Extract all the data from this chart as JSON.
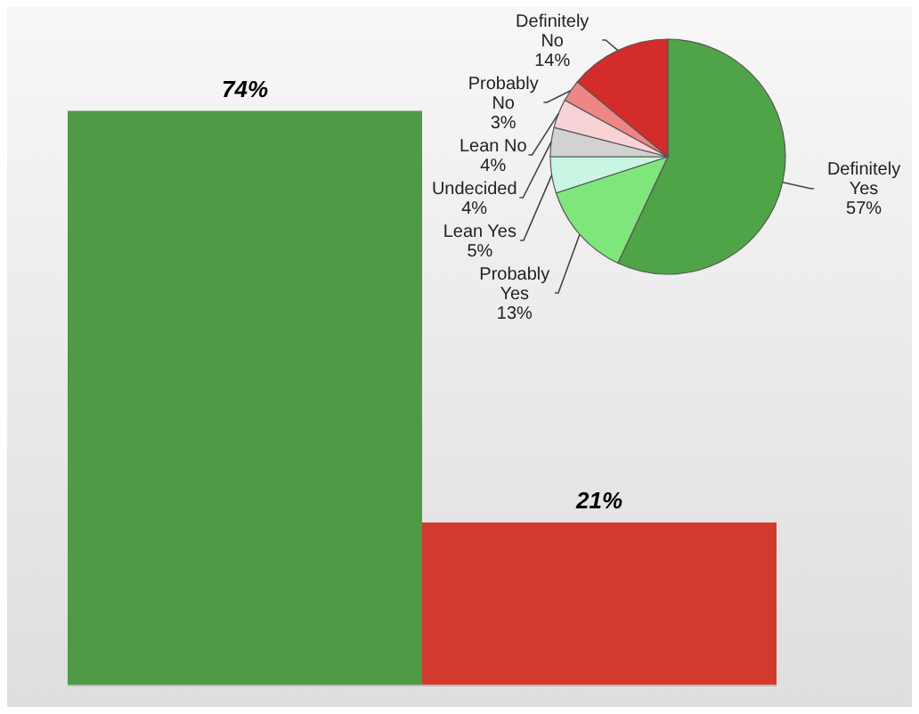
{
  "chart_data": [
    {
      "type": "bar",
      "categories": [
        null,
        null
      ],
      "values": [
        74,
        21
      ],
      "colors": [
        "#4e9a45",
        "#d23a2e"
      ],
      "tick_labels": false,
      "value_labels": [
        "74%",
        "21%"
      ]
    },
    {
      "type": "pie",
      "categories": [
        "Definitely Yes",
        "Probably Yes",
        "Lean Yes",
        "Undecided",
        "Lean No",
        "Probably No",
        "Definitely No"
      ],
      "values": [
        57,
        13,
        5,
        4,
        4,
        3,
        14
      ],
      "colors": [
        "#4fa447",
        "#7fe67b",
        "#c9f6e2",
        "#d2d2d2",
        "#f8d3d6",
        "#ef8585",
        "#d42b2b"
      ],
      "value_labels": [
        "57%",
        "13%",
        "5%",
        "4%",
        "4%",
        "3%",
        "14%"
      ]
    }
  ]
}
